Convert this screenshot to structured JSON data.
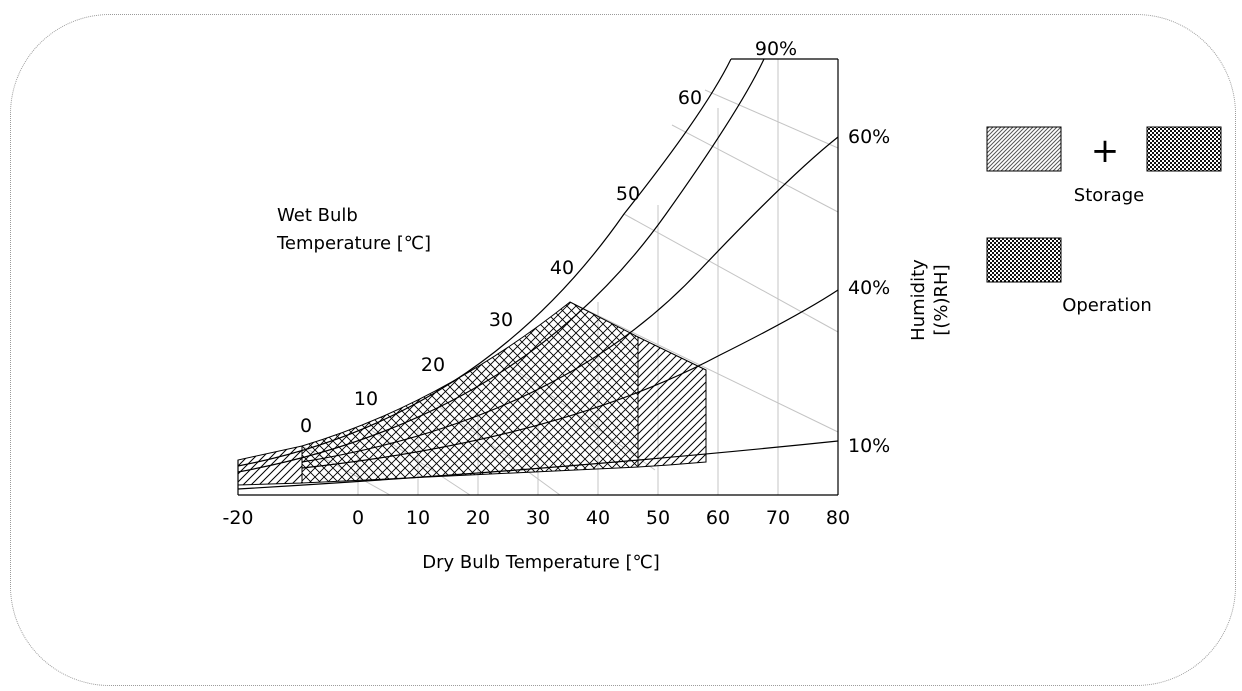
{
  "chart_data": {
    "type": "psychrometric-chart",
    "xlabel": "Dry Bulb Temperature [℃]",
    "x_ticks": [
      "-20",
      "0",
      "10",
      "20",
      "30",
      "40",
      "50",
      "60",
      "70",
      "80"
    ],
    "xlim": [
      -20,
      80
    ],
    "wet_bulb_label": {
      "line1": "Wet Bulb",
      "line2": "Temperature [℃]"
    },
    "wet_bulb_ticks": [
      "0",
      "10",
      "20",
      "30",
      "40",
      "50",
      "60"
    ],
    "humidity_label": {
      "line1": "Humidity",
      "line2": "[(%)RH]"
    },
    "humidity_ticks": [
      "10%",
      "40%",
      "60%",
      "90%"
    ],
    "regions": [
      {
        "name": "Operation",
        "pattern": "cross-hatch",
        "dry_bulb_range": [
          0,
          50
        ],
        "max_wet_bulb": 39,
        "humidity_range": [
          "10%",
          "90%"
        ]
      },
      {
        "name": "Storage",
        "pattern": "diagonal-hatch",
        "dry_bulb_range": [
          -20,
          60
        ],
        "max_wet_bulb": 39,
        "humidity_range": [
          "10%",
          "90%"
        ]
      }
    ],
    "legend": {
      "plus": "+",
      "storage_label": "Storage",
      "operation_label": "Operation",
      "placement": "right"
    }
  }
}
